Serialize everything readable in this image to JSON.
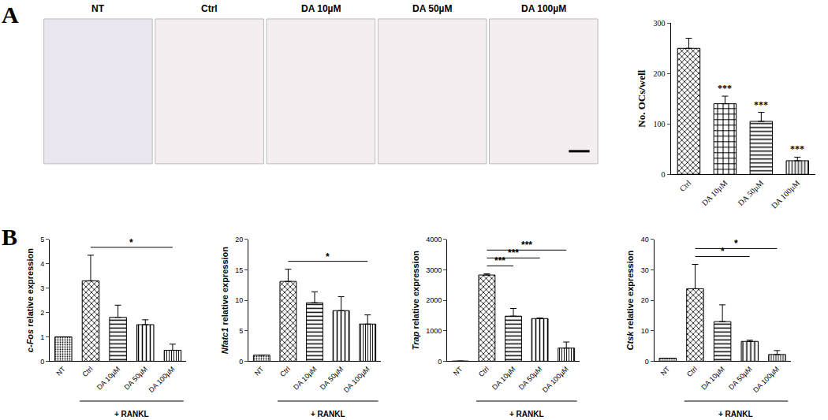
{
  "panel_labels": [
    "A",
    "B"
  ],
  "micrographs": {
    "labels": [
      "NT",
      "Ctrl",
      "DA 10µM",
      "DA 50µM",
      "DA 100µM"
    ]
  },
  "chart_data": [
    {
      "type": "bar",
      "categories": [
        "Ctrl",
        "DA 10µM",
        "DA 50µM",
        "DA 100µM"
      ],
      "values": [
        250,
        140,
        105,
        27
      ],
      "errors": [
        20,
        15,
        18,
        7
      ],
      "ylabel": "No. OCs/well",
      "ylim": [
        0,
        300
      ],
      "yticks": [
        0,
        100,
        200,
        300
      ],
      "color": "#000000",
      "annotations": [
        {
          "category": "DA 10µM",
          "label": "***"
        },
        {
          "category": "DA 50µM",
          "label": "***"
        },
        {
          "category": "DA 100µM",
          "label": "***"
        }
      ]
    },
    {
      "type": "bar",
      "categories": [
        "NT",
        "Ctrl",
        "DA 10µM",
        "DA 50µM",
        "DA 100µM"
      ],
      "values": [
        1.0,
        3.3,
        1.8,
        1.5,
        0.45
      ],
      "errors": [
        null,
        1.05,
        0.5,
        0.2,
        0.25
      ],
      "ylabel": "c-Fos relative expression",
      "ylim": [
        0,
        5
      ],
      "yticks": [
        0,
        1,
        2,
        3,
        4,
        5
      ],
      "color": "#000000",
      "annotations": [
        {
          "from": "Ctrl",
          "to": "DA 100µM",
          "label": "*"
        }
      ],
      "group": {
        "label": "+ RANKL",
        "categories": [
          "Ctrl",
          "DA 10µM",
          "DA 50µM",
          "DA 100µM"
        ]
      }
    },
    {
      "type": "bar",
      "categories": [
        "NT",
        "Ctrl",
        "DA 10µM",
        "DA 50µM",
        "DA 100µM"
      ],
      "values": [
        1.0,
        13.1,
        9.6,
        8.3,
        6.1
      ],
      "errors": [
        null,
        2.0,
        1.8,
        2.3,
        1.5
      ],
      "ylabel": "Nfatc1 relative expression",
      "ylim": [
        0,
        20
      ],
      "yticks": [
        0,
        5,
        10,
        15,
        20
      ],
      "color": "#000000",
      "annotations": [
        {
          "from": "Ctrl",
          "to": "DA 100µM",
          "label": "*"
        }
      ],
      "group": {
        "label": "+ RANKL",
        "categories": [
          "Ctrl",
          "DA 10µM",
          "DA 50µM",
          "DA 100µM"
        ]
      }
    },
    {
      "type": "bar",
      "categories": [
        "NT",
        "Ctrl",
        "DA 10µM",
        "DA 50µM",
        "DA 100µM"
      ],
      "values": [
        5,
        2830,
        1480,
        1400,
        430
      ],
      "errors": [
        null,
        40,
        250,
        20,
        200
      ],
      "ylabel": "Trap relative expression",
      "ylim": [
        0,
        4000
      ],
      "yticks": [
        0,
        1000,
        2000,
        3000,
        4000
      ],
      "color": "#000000",
      "annotations": [
        {
          "from": "Ctrl",
          "to": "DA 10µM",
          "label": "***"
        },
        {
          "from": "Ctrl",
          "to": "DA 50µM",
          "label": "***"
        },
        {
          "from": "Ctrl",
          "to": "DA 100µM",
          "label": "***"
        }
      ],
      "group": {
        "label": "+ RANKL",
        "categories": [
          "Ctrl",
          "DA 10µM",
          "DA 50µM",
          "DA 100µM"
        ]
      }
    },
    {
      "type": "bar",
      "categories": [
        "NT",
        "Ctrl",
        "DA 10µM",
        "DA 50µM",
        "DA 100µM"
      ],
      "values": [
        1.0,
        23.8,
        13.0,
        6.5,
        2.2
      ],
      "errors": [
        null,
        8.0,
        5.5,
        0.4,
        1.3
      ],
      "ylabel": "Ctsk relative expression",
      "ylim": [
        0,
        40
      ],
      "yticks": [
        0,
        10,
        20,
        30,
        40
      ],
      "color": "#000000",
      "annotations": [
        {
          "from": "Ctrl",
          "to": "DA 50µM",
          "label": "*"
        },
        {
          "from": "Ctrl",
          "to": "DA 100µM",
          "label": "*"
        }
      ],
      "group": {
        "label": "+ RANKL",
        "categories": [
          "Ctrl",
          "DA 10µM",
          "DA 50µM",
          "DA 100µM"
        ]
      }
    }
  ]
}
